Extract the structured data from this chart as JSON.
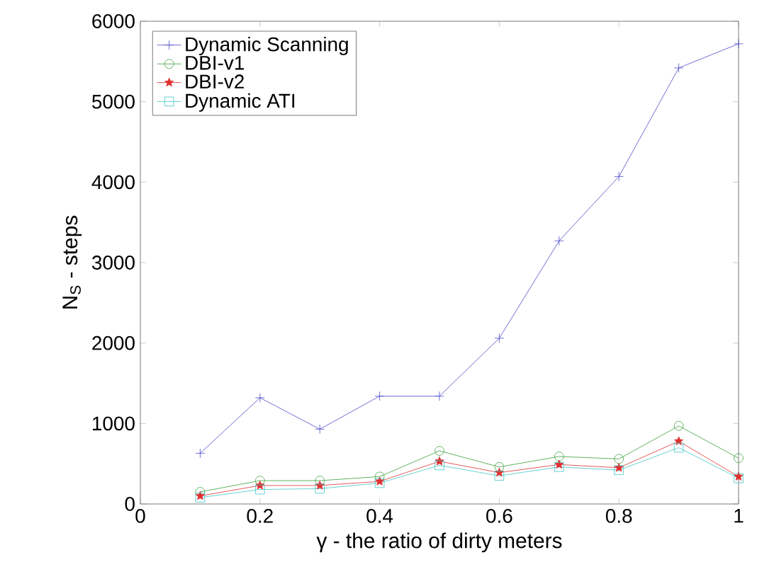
{
  "chart_data": {
    "type": "line",
    "xlabel": "γ - the ratio of dirty meters",
    "ylabel": "N$_{S}$ - steps",
    "x": [
      0.1,
      0.2,
      0.3,
      0.4,
      0.5,
      0.6,
      0.7,
      0.8,
      0.9,
      1.0
    ],
    "xlim": [
      0,
      1
    ],
    "xticks": [
      0,
      0.2,
      0.4,
      0.6,
      0.8,
      1
    ],
    "ylim": [
      0,
      6000
    ],
    "yticks": [
      0,
      1000,
      2000,
      3000,
      4000,
      5000,
      6000
    ],
    "legend": "top left",
    "grid": false,
    "line_style": "solid",
    "series": [
      {
        "name": "Dynamic Scanning",
        "color": "#4a4acc",
        "marker": "cross",
        "values": [
          630,
          1320,
          930,
          1340,
          1340,
          2060,
          3270,
          4070,
          5420,
          5720
        ]
      },
      {
        "name": "DBI-v1",
        "color": "#3a9e3a",
        "marker": "circle",
        "values": [
          150,
          290,
          290,
          340,
          660,
          460,
          590,
          560,
          970,
          570
        ]
      },
      {
        "name": "DBI-v2",
        "color": "#e03030",
        "marker": "star",
        "values": [
          100,
          230,
          230,
          280,
          530,
          390,
          490,
          450,
          780,
          340
        ]
      },
      {
        "name": "Dynamic ATI",
        "color": "#40c4c4",
        "marker": "square",
        "values": [
          80,
          180,
          190,
          260,
          480,
          350,
          460,
          420,
          700,
          320
        ]
      }
    ]
  }
}
